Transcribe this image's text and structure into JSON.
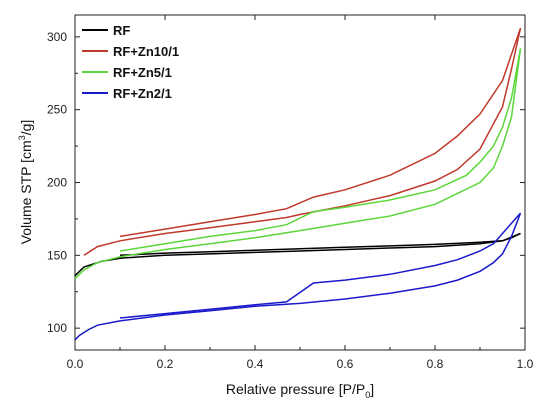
{
  "chart_data": {
    "type": "line",
    "xlabel": "Relative pressure [P/P",
    "xlabel_sub": "0",
    "xlabel_end": "]",
    "ylabel": "Volume STP [cm",
    "ylabel_sup": "3",
    "ylabel_end": "/g]",
    "xlim": [
      0.0,
      1.0
    ],
    "ylim": [
      85,
      315
    ],
    "xticks": [
      0.0,
      0.2,
      0.4,
      0.6,
      0.8,
      1.0
    ],
    "xtick_labels": [
      "0.0",
      "0.2",
      "0.4",
      "0.6",
      "0.8",
      "1.0"
    ],
    "yticks": [
      100,
      150,
      200,
      250,
      300
    ],
    "ytick_labels": [
      "100",
      "150",
      "200",
      "250",
      "300"
    ],
    "grid": false,
    "legend_position": "top-left",
    "series": [
      {
        "name": "RF",
        "color": "#000000",
        "branches": [
          {
            "x": [
              0.0,
              0.01,
              0.02,
              0.04,
              0.06,
              0.1,
              0.2,
              0.3,
              0.4,
              0.5,
              0.6,
              0.7,
              0.8,
              0.9,
              0.95,
              0.97,
              0.99
            ],
            "y": [
              136,
              139,
              142,
              144,
              146,
              148,
              150,
              151,
              152,
              153,
              154,
              155,
              156,
              158,
              160,
              162,
              165
            ]
          },
          {
            "x": [
              0.1,
              0.2,
              0.3,
              0.4,
              0.5,
              0.6,
              0.7,
              0.8,
              0.9,
              0.95,
              0.99
            ],
            "y": [
              150,
              151.5,
              152.5,
              153.5,
              154.5,
              155.5,
              156.5,
              157.5,
              159,
              160,
              165
            ]
          }
        ]
      },
      {
        "name": "RF+Zn10/1",
        "color": "#c0392b",
        "branches": [
          {
            "x": [
              0.02,
              0.05,
              0.1,
              0.2,
              0.3,
              0.4,
              0.47,
              0.5,
              0.6,
              0.7,
              0.8,
              0.85,
              0.9,
              0.95,
              0.97,
              0.99
            ],
            "y": [
              150,
              156,
              160,
              165,
              169,
              173,
              176,
              178,
              184,
              191,
              201,
              209,
              223,
              252,
              278,
              306
            ]
          },
          {
            "x": [
              0.1,
              0.2,
              0.3,
              0.4,
              0.47,
              0.53,
              0.6,
              0.7,
              0.8,
              0.85,
              0.9,
              0.95,
              0.99
            ],
            "y": [
              163,
              168,
              173,
              178,
              182,
              190,
              195,
              205,
              220,
              232,
              247,
              270,
              306
            ]
          }
        ]
      },
      {
        "name": "RF+Zn5/1",
        "color": "#5cd63a",
        "branches": [
          {
            "x": [
              0.0,
              0.02,
              0.05,
              0.1,
              0.2,
              0.3,
              0.4,
              0.5,
              0.6,
              0.7,
              0.8,
              0.9,
              0.93,
              0.95,
              0.97,
              0.99
            ],
            "y": [
              134,
              140,
              145,
              149,
              154,
              158,
              162,
              167,
              172,
              177,
              185,
              200,
              210,
              225,
              245,
              292
            ]
          },
          {
            "x": [
              0.1,
              0.2,
              0.3,
              0.4,
              0.47,
              0.53,
              0.6,
              0.7,
              0.8,
              0.87,
              0.9,
              0.93,
              0.95,
              0.97,
              0.99
            ],
            "y": [
              153,
              158,
              163,
              167,
              171,
              180,
              183,
              188,
              195,
              205,
              214,
              225,
              238,
              258,
              292
            ]
          }
        ]
      },
      {
        "name": "RF+Zn2/1",
        "color": "#1a1acc",
        "branches": [
          {
            "x": [
              0.0,
              0.01,
              0.03,
              0.05,
              0.1,
              0.2,
              0.3,
              0.4,
              0.5,
              0.6,
              0.7,
              0.8,
              0.85,
              0.9,
              0.93,
              0.95,
              0.97,
              0.99
            ],
            "y": [
              92,
              95,
              99,
              102,
              105,
              109,
              112,
              115,
              117,
              120,
              124,
              129,
              133,
              139,
              145,
              151,
              163,
              179
            ]
          },
          {
            "x": [
              0.1,
              0.2,
              0.3,
              0.4,
              0.47,
              0.53,
              0.6,
              0.7,
              0.8,
              0.85,
              0.9,
              0.93,
              0.95,
              0.97,
              0.99
            ],
            "y": [
              107,
              110,
              113,
              116,
              118,
              131,
              133,
              137,
              143,
              147,
              153,
              158,
              165,
              172,
              179
            ]
          }
        ]
      }
    ]
  }
}
